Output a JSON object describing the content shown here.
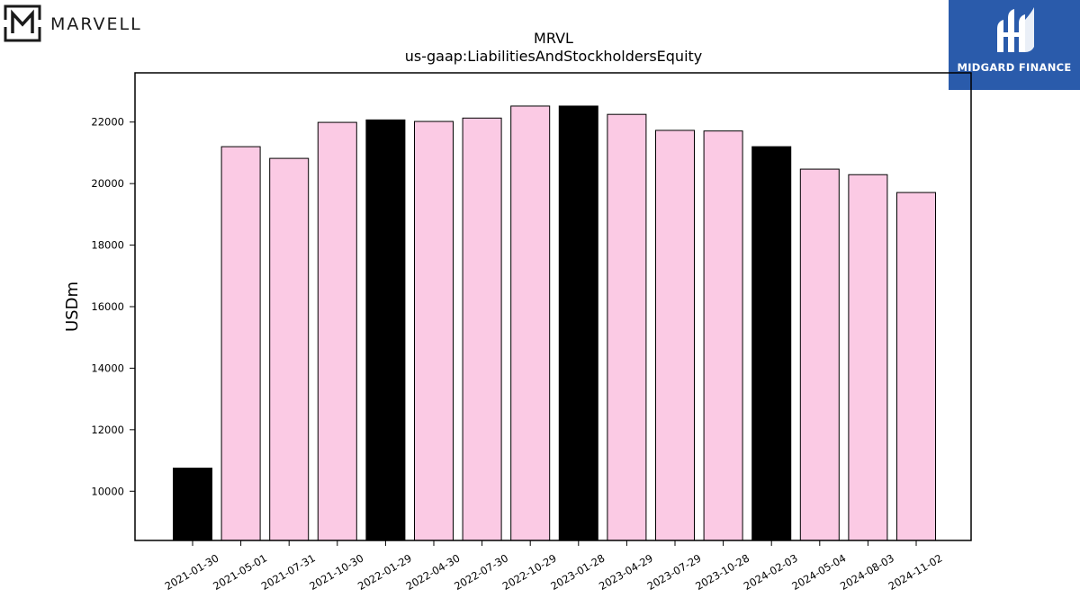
{
  "branding": {
    "left_logo_text": "MARVELL",
    "right_logo_text": "MIDGARD FINANCE",
    "right_logo_bg": "#2a5bab"
  },
  "chart_data": {
    "type": "bar",
    "title": "MRVL",
    "subtitle": "us-gaap:LiabilitiesAndStockholdersEquity",
    "ylabel": "USDm",
    "xlabel": "",
    "ylim": [
      8400,
      23600
    ],
    "yticks": [
      10000,
      12000,
      14000,
      16000,
      18000,
      20000,
      22000
    ],
    "categories": [
      "2021-01-30",
      "2021-05-01",
      "2021-07-31",
      "2021-10-30",
      "2022-01-29",
      "2022-04-30",
      "2022-07-30",
      "2022-10-29",
      "2023-01-28",
      "2023-04-29",
      "2023-07-29",
      "2023-10-28",
      "2024-02-03",
      "2024-05-04",
      "2024-08-03",
      "2024-11-02"
    ],
    "values": [
      10750,
      21200,
      20820,
      21990,
      22070,
      22020,
      22130,
      22520,
      22520,
      22250,
      21730,
      21710,
      21200,
      20470,
      20290,
      19710
    ],
    "highlight": [
      true,
      false,
      false,
      false,
      true,
      false,
      false,
      false,
      true,
      false,
      false,
      false,
      true,
      false,
      false,
      false
    ],
    "colors": {
      "highlight": "#000000",
      "normal": "#fbcae4",
      "edge": "#000000"
    },
    "grid": false,
    "legend": "none"
  }
}
